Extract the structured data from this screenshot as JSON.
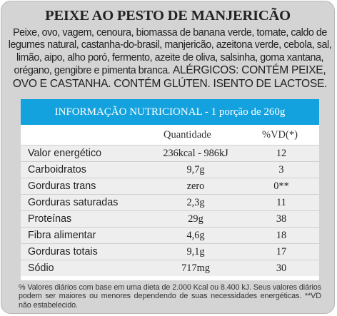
{
  "title": "PEIXE AO PESTO DE MANJERICÃO",
  "ingredients": "Peixe, ovo, vagem, cenoura, biomassa de banana verde, tomate, caldo de legumes natural, castanha-do-brasil, manjericão, azeitona verde, cebola, sal, limão, aipo, alho poró, fermento, azeite de oliva, salsinha, goma xantana, orégano, gengibre e pimenta branca.",
  "allergens": "ALÉRGICOS: CONTÉM PEIXE, OVO E CASTANHA. CONTÉM GLÚTEN. ISENTO DE LACTOSE.",
  "table": {
    "header": "INFORMAÇÃO NUTRICIONAL - 1 porção de 260g",
    "col_quantity": "Quantidade",
    "col_vd": "%VD(*)",
    "rows": [
      {
        "nutrient": "Valor energético",
        "quantity": "236kcal - 986kJ",
        "vd": "12"
      },
      {
        "nutrient": "Carboidratos",
        "quantity": "9,7g",
        "vd": "3"
      },
      {
        "nutrient": "Gorduras trans",
        "quantity": "zero",
        "vd": "0**"
      },
      {
        "nutrient": "Gorduras saturadas",
        "quantity": "2,3g",
        "vd": "11"
      },
      {
        "nutrient": "Proteínas",
        "quantity": "29g",
        "vd": "38"
      },
      {
        "nutrient": "Fibra alimentar",
        "quantity": "4,6g",
        "vd": "18"
      },
      {
        "nutrient": "Gorduras totais",
        "quantity": "9,1g",
        "vd": "17"
      },
      {
        "nutrient": "Sódio",
        "quantity": "717mg",
        "vd": "30"
      }
    ]
  },
  "footnote": "% Valores diários com base em uma dieta de 2.000 Kcal ou 8.400 kJ. Seus valores diários podem ser maiores ou menores dependendo de suas necessidades energéticas. **VD não estabelecido.",
  "colors": {
    "background": "#d4d4d4",
    "header": "#14a2de",
    "row": "#eeeeee"
  }
}
